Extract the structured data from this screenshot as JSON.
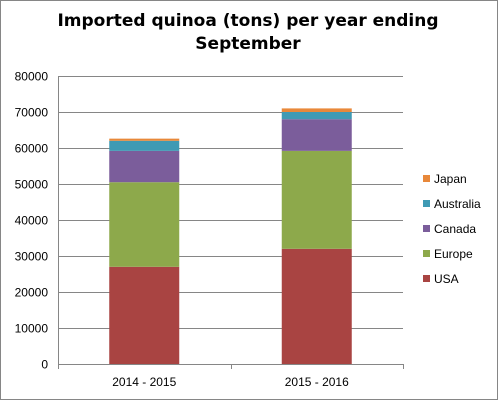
{
  "chart_data": {
    "type": "bar",
    "stacked": true,
    "title": "Imported quinoa (tons) per year ending September",
    "xlabel": "",
    "ylabel": "",
    "categories": [
      "2014 - 2015",
      "2015 - 2016"
    ],
    "ylim": [
      0,
      80000
    ],
    "yticks": [
      0,
      10000,
      20000,
      30000,
      40000,
      50000,
      60000,
      70000,
      80000
    ],
    "grid": true,
    "legend_position": "right",
    "series": [
      {
        "name": "USA",
        "values": [
          27000,
          32000
        ],
        "color": "#A94442"
      },
      {
        "name": "Europe",
        "values": [
          23500,
          27200
        ],
        "color": "#8DA94B"
      },
      {
        "name": "Canada",
        "values": [
          8700,
          8800
        ],
        "color": "#7B5D9B"
      },
      {
        "name": "Australia",
        "values": [
          2800,
          2000
        ],
        "color": "#3F9AB4"
      },
      {
        "name": "Japan",
        "values": [
          600,
          1000
        ],
        "color": "#E8883A"
      }
    ]
  }
}
